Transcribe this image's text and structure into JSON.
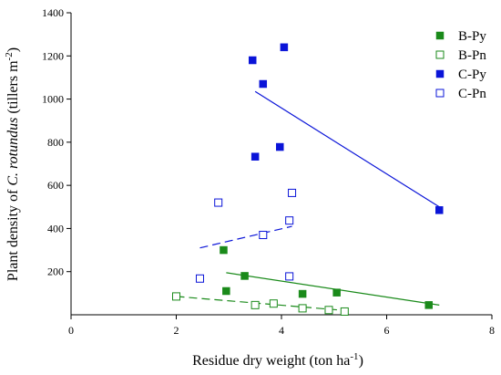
{
  "chart_data": {
    "type": "scatter",
    "xlabel_parts": [
      "Residue dry weight (ton ha",
      "-1",
      ")"
    ],
    "ylabel_parts": [
      "Plant density of ",
      "C. rotundus",
      " (tillers m",
      "-2",
      ")"
    ],
    "xlim": [
      0,
      8
    ],
    "ylim": [
      0,
      1400
    ],
    "xticks": [
      0,
      2,
      4,
      6,
      8
    ],
    "yticks": [
      200,
      400,
      600,
      800,
      1000,
      1200,
      1400
    ],
    "grid": false,
    "legend_position": "top-right",
    "series": [
      {
        "name": "B-Py",
        "color": "#1a8a1a",
        "marker": "filled-square",
        "points": [
          [
            2.9,
            300
          ],
          [
            2.95,
            110
          ],
          [
            3.3,
            180
          ],
          [
            4.4,
            97
          ],
          [
            5.05,
            103
          ],
          [
            6.8,
            45
          ]
        ],
        "trend": {
          "x": [
            2.95,
            7.0
          ],
          "y": [
            195,
            45
          ],
          "style": "solid"
        }
      },
      {
        "name": "B-Pn",
        "color": "#1a8a1a",
        "marker": "open-square",
        "points": [
          [
            2.0,
            85
          ],
          [
            3.5,
            45
          ],
          [
            3.85,
            52
          ],
          [
            4.4,
            30
          ],
          [
            4.9,
            22
          ],
          [
            5.2,
            15
          ]
        ],
        "trend": {
          "x": [
            2.0,
            5.2
          ],
          "y": [
            85,
            20
          ],
          "style": "dashed"
        }
      },
      {
        "name": "C-Py",
        "color": "#0a14d8",
        "marker": "filled-square",
        "points": [
          [
            3.45,
            1180
          ],
          [
            3.5,
            733
          ],
          [
            3.65,
            1070
          ],
          [
            3.97,
            778
          ],
          [
            4.05,
            1240
          ],
          [
            7.0,
            485
          ]
        ],
        "trend": {
          "x": [
            3.5,
            7.0
          ],
          "y": [
            1035,
            500
          ],
          "style": "solid"
        }
      },
      {
        "name": "C-Pn",
        "color": "#0a14d8",
        "marker": "open-square",
        "points": [
          [
            2.45,
            168
          ],
          [
            2.8,
            520
          ],
          [
            3.65,
            370
          ],
          [
            4.15,
            178
          ],
          [
            4.15,
            437
          ],
          [
            4.2,
            565
          ]
        ],
        "trend": {
          "x": [
            2.45,
            4.2
          ],
          "y": [
            310,
            410
          ],
          "style": "dashed"
        }
      }
    ]
  }
}
